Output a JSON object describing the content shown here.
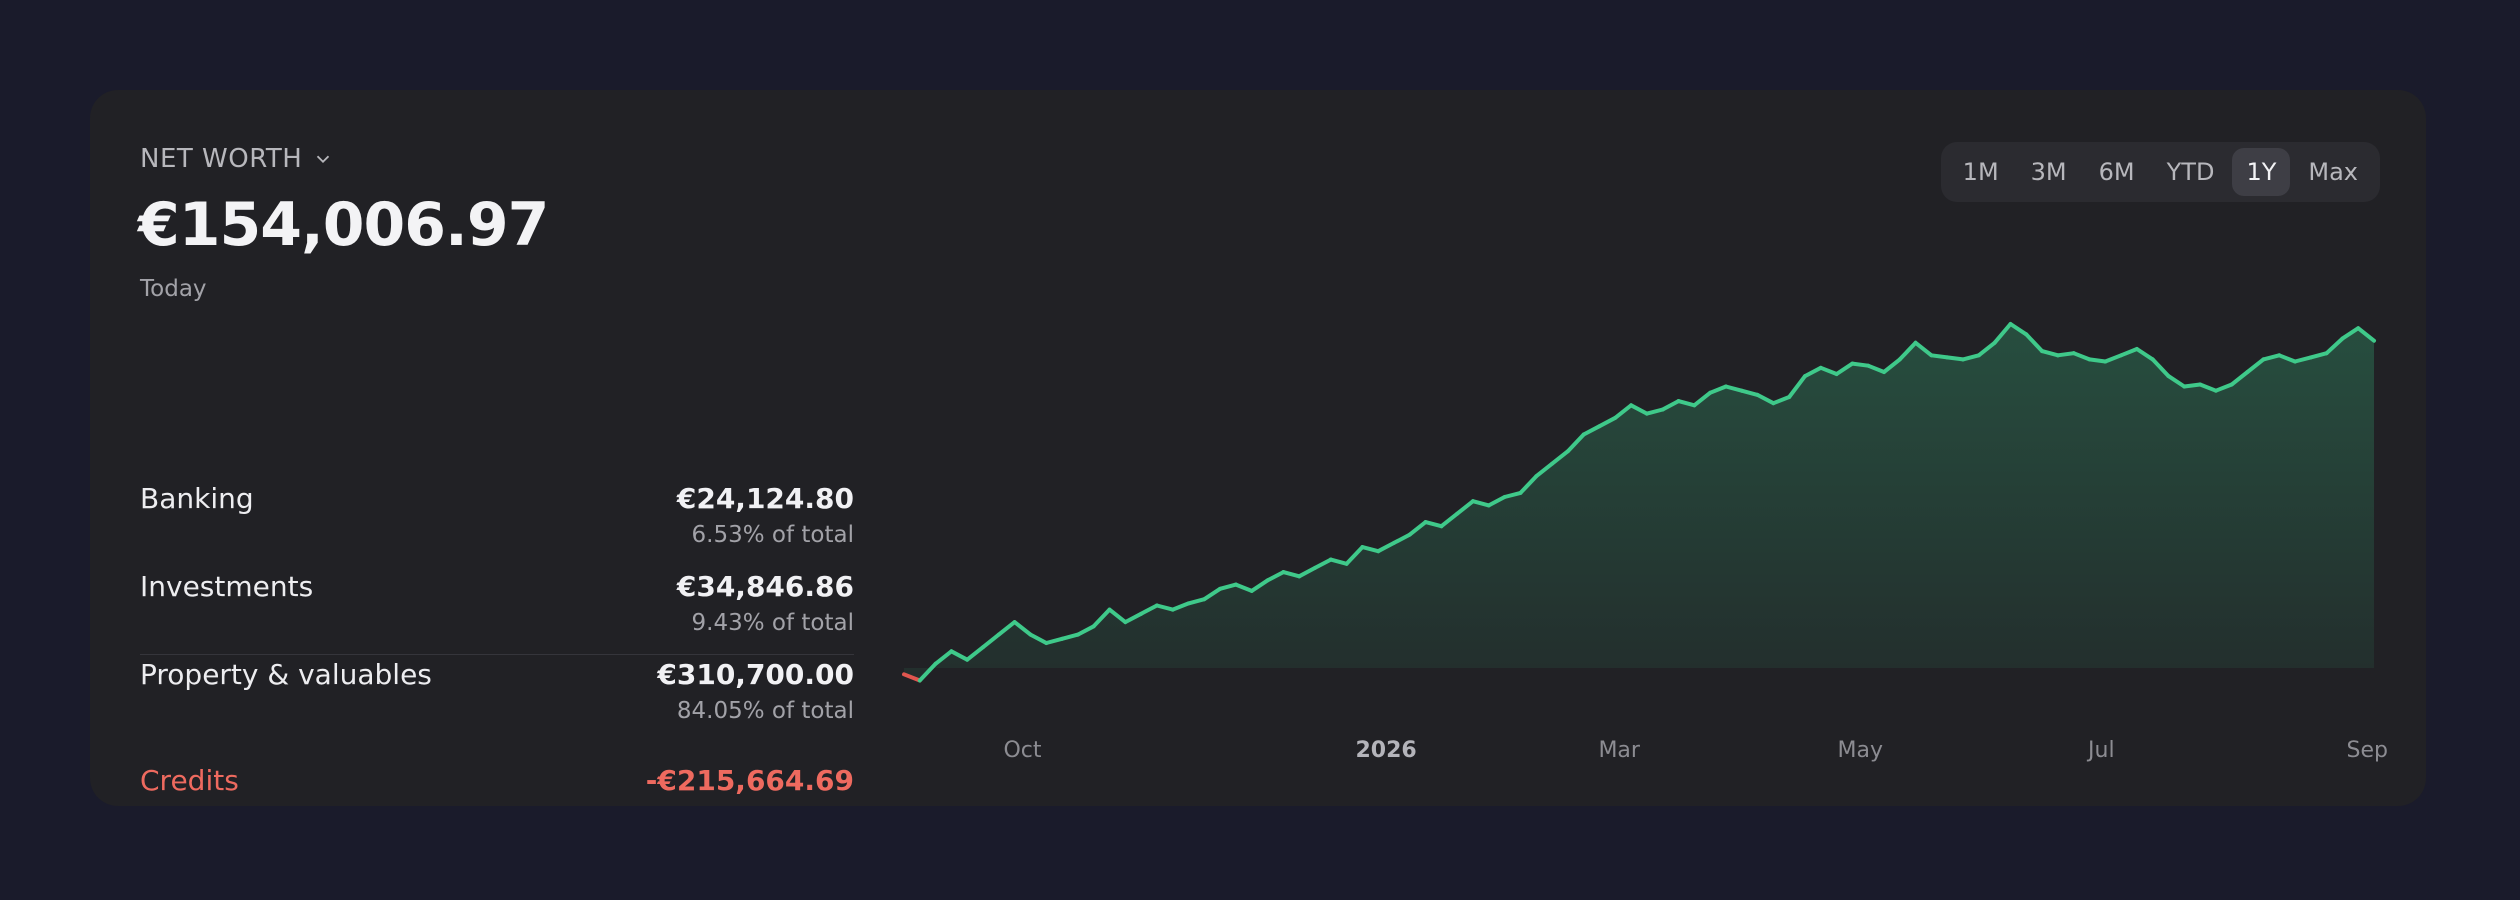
{
  "header": {
    "title": "NET WORTH",
    "total": "€154,006.97",
    "date_label": "Today"
  },
  "breakdown": [
    {
      "label": "Banking",
      "amount": "€24,124.80",
      "share": "6.53% of total"
    },
    {
      "label": "Investments",
      "amount": "€34,846.86",
      "share": "9.43% of total"
    },
    {
      "label": "Property & valuables",
      "amount": "€310,700.00",
      "share": "84.05% of total"
    }
  ],
  "credits": {
    "label": "Credits",
    "amount": "-€215,664.69"
  },
  "range_selector": {
    "options": [
      "1M",
      "3M",
      "6M",
      "YTD",
      "1Y",
      "Max"
    ],
    "selected": "1Y"
  },
  "colors": {
    "line_positive": "#3fc98a",
    "line_negative": "#e0564f",
    "negative_text": "#ee6a5f"
  },
  "chart_data": {
    "type": "area",
    "x_tick_labels": [
      "Oct",
      "2026",
      "Mar",
      "May",
      "Jul",
      "Sep"
    ],
    "x_tick_dates": [
      "2025-10-01",
      "2026-01-01",
      "2026-03-01",
      "2026-05-01",
      "2026-07-01",
      "2026-09-01"
    ],
    "emphasized_tick": "2026",
    "grid": false,
    "legend": "none",
    "series": [
      {
        "points": [
          [
            "2025-09-01",
            -3000
          ],
          [
            "2025-09-05",
            -6000
          ],
          [
            "2025-09-09",
            2000
          ],
          [
            "2025-09-13",
            8000
          ],
          [
            "2025-09-17",
            4000
          ],
          [
            "2025-09-21",
            10000
          ],
          [
            "2025-09-25",
            16000
          ],
          [
            "2025-09-29",
            22000
          ],
          [
            "2025-10-03",
            16000
          ],
          [
            "2025-10-07",
            12000
          ],
          [
            "2025-10-11",
            14000
          ],
          [
            "2025-10-15",
            16000
          ],
          [
            "2025-10-19",
            20000
          ],
          [
            "2025-10-23",
            28000
          ],
          [
            "2025-10-27",
            22000
          ],
          [
            "2025-10-31",
            26000
          ],
          [
            "2025-11-04",
            30000
          ],
          [
            "2025-11-08",
            28000
          ],
          [
            "2025-11-12",
            31000
          ],
          [
            "2025-11-16",
            33000
          ],
          [
            "2025-11-20",
            38000
          ],
          [
            "2025-11-24",
            40000
          ],
          [
            "2025-11-28",
            37000
          ],
          [
            "2025-12-02",
            42000
          ],
          [
            "2025-12-06",
            46000
          ],
          [
            "2025-12-10",
            44000
          ],
          [
            "2025-12-14",
            48000
          ],
          [
            "2025-12-18",
            52000
          ],
          [
            "2025-12-22",
            50000
          ],
          [
            "2025-12-26",
            58000
          ],
          [
            "2025-12-30",
            56000
          ],
          [
            "2026-01-03",
            60000
          ],
          [
            "2026-01-07",
            64000
          ],
          [
            "2026-01-11",
            70000
          ],
          [
            "2026-01-15",
            68000
          ],
          [
            "2026-01-19",
            74000
          ],
          [
            "2026-01-23",
            80000
          ],
          [
            "2026-01-27",
            78000
          ],
          [
            "2026-01-31",
            82000
          ],
          [
            "2026-02-04",
            84000
          ],
          [
            "2026-02-08",
            92000
          ],
          [
            "2026-02-12",
            98000
          ],
          [
            "2026-02-16",
            104000
          ],
          [
            "2026-02-20",
            112000
          ],
          [
            "2026-02-24",
            116000
          ],
          [
            "2026-02-28",
            120000
          ],
          [
            "2026-03-04",
            126000
          ],
          [
            "2026-03-08",
            122000
          ],
          [
            "2026-03-12",
            124000
          ],
          [
            "2026-03-16",
            128000
          ],
          [
            "2026-03-20",
            126000
          ],
          [
            "2026-03-24",
            132000
          ],
          [
            "2026-03-28",
            135000
          ],
          [
            "2026-04-01",
            133000
          ],
          [
            "2026-04-05",
            131000
          ],
          [
            "2026-04-09",
            127000
          ],
          [
            "2026-04-13",
            130000
          ],
          [
            "2026-04-17",
            140000
          ],
          [
            "2026-04-21",
            144000
          ],
          [
            "2026-04-25",
            141000
          ],
          [
            "2026-04-29",
            146000
          ],
          [
            "2026-05-03",
            145000
          ],
          [
            "2026-05-07",
            142000
          ],
          [
            "2026-05-11",
            148000
          ],
          [
            "2026-05-15",
            156000
          ],
          [
            "2026-05-19",
            150000
          ],
          [
            "2026-05-23",
            149000
          ],
          [
            "2026-05-27",
            148000
          ],
          [
            "2026-05-31",
            150000
          ],
          [
            "2026-06-04",
            156000
          ],
          [
            "2026-06-08",
            165000
          ],
          [
            "2026-06-12",
            160000
          ],
          [
            "2026-06-16",
            152000
          ],
          [
            "2026-06-20",
            150000
          ],
          [
            "2026-06-24",
            151000
          ],
          [
            "2026-06-28",
            148000
          ],
          [
            "2026-07-02",
            147000
          ],
          [
            "2026-07-06",
            150000
          ],
          [
            "2026-07-10",
            153000
          ],
          [
            "2026-07-14",
            148000
          ],
          [
            "2026-07-18",
            140000
          ],
          [
            "2026-07-22",
            135000
          ],
          [
            "2026-07-26",
            136000
          ],
          [
            "2026-07-30",
            133000
          ],
          [
            "2026-08-03",
            136000
          ],
          [
            "2026-08-07",
            142000
          ],
          [
            "2026-08-11",
            148000
          ],
          [
            "2026-08-15",
            150000
          ],
          [
            "2026-08-19",
            147000
          ],
          [
            "2026-08-23",
            149000
          ],
          [
            "2026-08-27",
            151000
          ],
          [
            "2026-08-31",
            158000
          ],
          [
            "2026-09-04",
            163000
          ],
          [
            "2026-09-08",
            157000
          ]
        ]
      }
    ]
  }
}
